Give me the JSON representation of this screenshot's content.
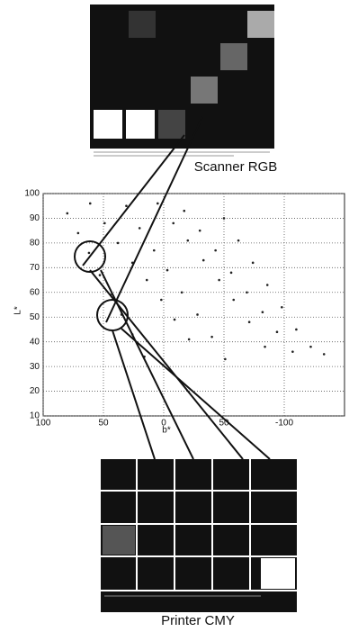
{
  "top_image_label": "Scanner RGB",
  "bottom_image_label": "Printer CMY",
  "chart_data": {
    "type": "scatter",
    "xlabel": "b*",
    "ylabel": "L*",
    "color": "#222",
    "grid": true,
    "xlim": [
      100,
      -150
    ],
    "ylim": [
      10,
      100
    ],
    "xticks": [
      100,
      50,
      0,
      {
        "value": -50,
        "label": "50"
      },
      -100
    ],
    "yticks": [
      10,
      20,
      30,
      40,
      50,
      60,
      70,
      80,
      90,
      100
    ],
    "x": [
      80,
      71,
      62,
      53,
      44,
      35,
      26,
      16,
      61,
      49,
      38,
      26,
      14,
      2,
      -9,
      -21,
      31,
      20,
      8,
      -3,
      -15,
      -28,
      -40,
      -51,
      5,
      -8,
      -20,
      -33,
      -46,
      -58,
      -71,
      -84,
      -17,
      -30,
      -43,
      -56,
      -69,
      -82,
      -94,
      -107,
      -50,
      -62,
      -74,
      -86,
      -98,
      -110,
      -122,
      -133
    ],
    "y": [
      92,
      84,
      76,
      67,
      59,
      51,
      43,
      34,
      96,
      88,
      80,
      72,
      65,
      57,
      49,
      41,
      95,
      86,
      77,
      69,
      60,
      51,
      42,
      33,
      96,
      88,
      81,
      73,
      65,
      57,
      48,
      38,
      93,
      85,
      77,
      68,
      60,
      52,
      44,
      36,
      90,
      81,
      72,
      63,
      54,
      45,
      38,
      35
    ]
  }
}
